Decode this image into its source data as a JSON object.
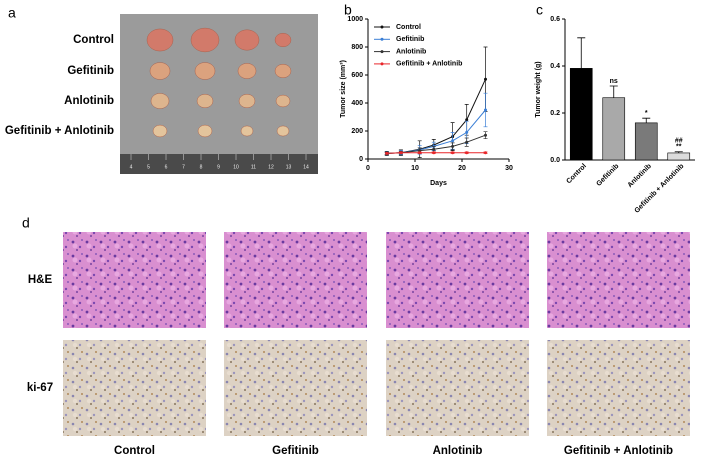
{
  "panels": {
    "a": "a",
    "b": "b",
    "c": "c",
    "d": "d"
  },
  "photo": {
    "groups": [
      "Control",
      "Gefitinib",
      "Anlotinib",
      "Gefitinib + Anlotinib"
    ],
    "ruler_labels": [
      "4",
      "5",
      "6",
      "7",
      "8",
      "9",
      "10",
      "11",
      "12",
      "13",
      "14"
    ]
  },
  "histology": {
    "rows": [
      "H&E",
      "ki-67"
    ],
    "columns": [
      "Control",
      "Gefitinib",
      "Anlotinib",
      "Gefitinib + Anlotinib"
    ]
  },
  "chart_data": [
    {
      "type": "line",
      "ylabel": "Tumor size (mm³)",
      "xlabel": "Days",
      "x": [
        4,
        7,
        11,
        14,
        18,
        21,
        25
      ],
      "xlim": [
        0,
        30
      ],
      "xticks": [
        0,
        10,
        20,
        30
      ],
      "ylim": [
        0,
        1000
      ],
      "yticks": [
        0,
        200,
        400,
        600,
        800,
        1000
      ],
      "legend": "top-left",
      "series": [
        {
          "name": "Control",
          "color": "#111111",
          "values": [
            40,
            45,
            70,
            100,
            160,
            280,
            570
          ],
          "errors": [
            15,
            20,
            60,
            40,
            100,
            110,
            230
          ]
        },
        {
          "name": "Gefitinib",
          "color": "#3b7fd6",
          "values": [
            40,
            45,
            65,
            90,
            130,
            190,
            350
          ],
          "errors": [
            10,
            15,
            30,
            30,
            60,
            80,
            120
          ]
        },
        {
          "name": "Anlotinib",
          "color": "#333333",
          "values": [
            40,
            45,
            60,
            70,
            90,
            120,
            170
          ],
          "errors": [
            8,
            10,
            20,
            20,
            25,
            30,
            25
          ]
        },
        {
          "name": "Gefitinib + Anlotinib",
          "color": "#e8262a",
          "values": [
            40,
            45,
            45,
            45,
            45,
            45,
            45
          ],
          "errors": [
            5,
            5,
            5,
            5,
            5,
            5,
            5
          ]
        }
      ]
    },
    {
      "type": "bar",
      "ylabel": "Tumor weight (g)",
      "categories": [
        "Control",
        "Gefitinib",
        "Anlotinib",
        "Gefitinib + Anlotinib"
      ],
      "values": [
        0.39,
        0.265,
        0.158,
        0.03
      ],
      "errors": [
        0.13,
        0.05,
        0.02,
        0.005
      ],
      "colors": [
        "#000000",
        "#a9a9a9",
        "#7a7a7a",
        "#dcdcdc"
      ],
      "significance": [
        null,
        "ns",
        "*",
        "**"
      ],
      "significance_vs_gefitinib": [
        null,
        null,
        null,
        "##"
      ],
      "ylim": [
        0,
        0.6
      ],
      "yticks": [
        {
          "value": 0,
          "label": "0.0"
        },
        {
          "value": 0.2,
          "label": "0.2"
        },
        {
          "value": 0.4,
          "label": "0.4"
        },
        {
          "value": 0.6,
          "label": "0.6"
        }
      ]
    }
  ]
}
